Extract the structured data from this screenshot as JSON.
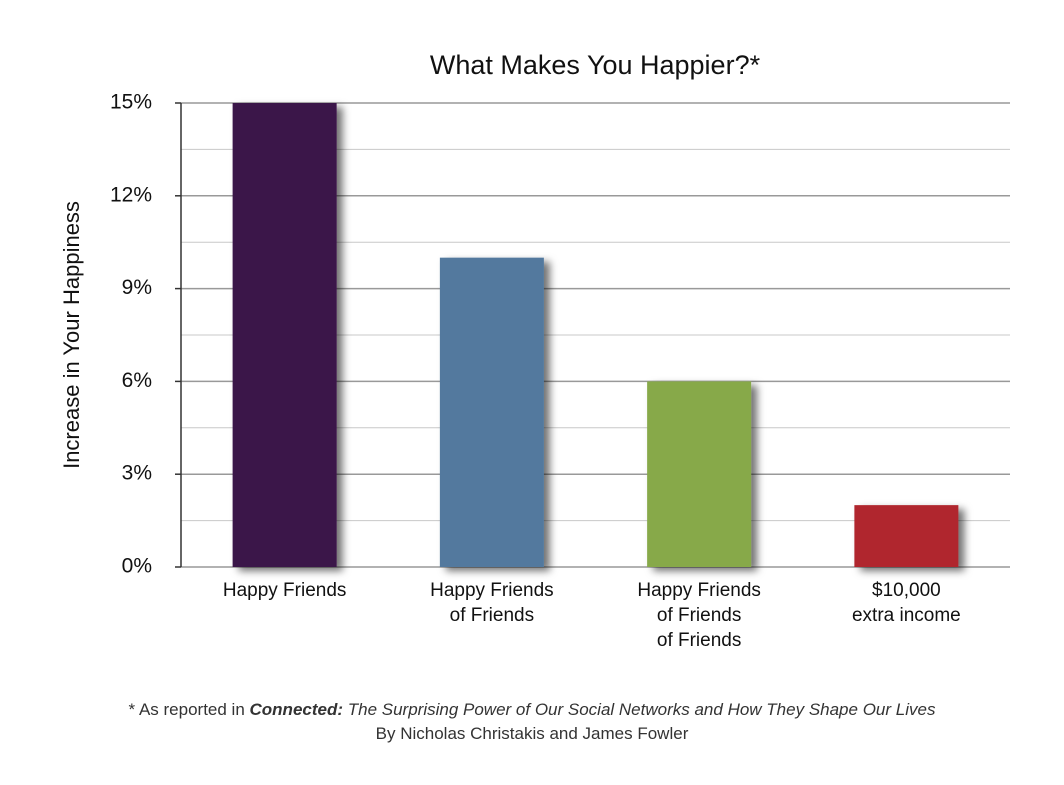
{
  "chart_data": {
    "type": "bar",
    "title": "What Makes You Happier?*",
    "y_label": "Increase in Your Happiness",
    "categories": [
      "Happy Friends",
      "Happy Friends\nof Friends",
      "Happy Friends\nof Friends\nof Friends",
      "$10,000\nextra income"
    ],
    "values": [
      15,
      10,
      6,
      2
    ],
    "colors": [
      "#3a1449",
      "#52799e",
      "#87a94a",
      "#b0262f"
    ],
    "ylim": [
      0,
      15
    ],
    "yticks": [
      {
        "value": 0,
        "label": "0%"
      },
      {
        "value": 3,
        "label": "3%"
      },
      {
        "value": 6,
        "label": "6%"
      },
      {
        "value": 9,
        "label": "9%"
      },
      {
        "value": 12,
        "label": "12%"
      },
      {
        "value": 15,
        "label": "15%"
      }
    ],
    "minor_yticks": [
      1.5,
      4.5,
      7.5,
      10.5,
      13.5
    ],
    "grid": true
  },
  "footnote": {
    "prefix": "* As reported in ",
    "book_title": "Connected:",
    "book_subtitle": " The Surprising Power of Our Social Networks and How They Shape Our Lives",
    "byline": "By Nicholas Christakis and James Fowler"
  }
}
